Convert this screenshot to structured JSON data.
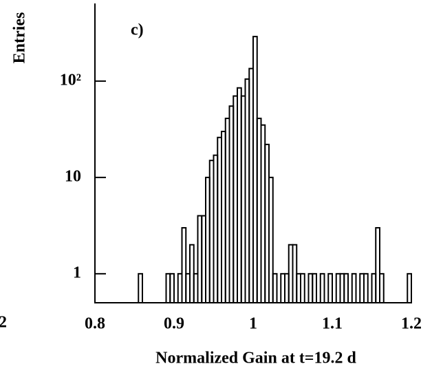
{
  "chart_data": {
    "type": "histogram",
    "annotation": "c)",
    "clipped_label": "2",
    "xlabel": "Normalized Gain at t=19.2 d",
    "ylabel": "Entries",
    "log_y": true,
    "color": "#000000",
    "xlim": [
      0.8,
      1.2
    ],
    "xticks": [
      0.8,
      0.9,
      1,
      1.1,
      1.2
    ],
    "ylim": [
      0.5,
      640
    ],
    "yticks": [
      1,
      10,
      {
        "value": 100,
        "label": "10²"
      }
    ],
    "bins": [
      0.8,
      0.805,
      0.81,
      0.815,
      0.82,
      0.825,
      0.83,
      0.835,
      0.84,
      0.845,
      0.85,
      0.855,
      0.86,
      0.865,
      0.87,
      0.875,
      0.88,
      0.885,
      0.89,
      0.895,
      0.9,
      0.905,
      0.91,
      0.915,
      0.92,
      0.925,
      0.93,
      0.935,
      0.94,
      0.945,
      0.95,
      0.955,
      0.96,
      0.965,
      0.97,
      0.975,
      0.98,
      0.985,
      0.99,
      0.995,
      1,
      1.005,
      1.01,
      1.015,
      1.02,
      1.025,
      1.03,
      1.035,
      1.04,
      1.045,
      1.05,
      1.055,
      1.06,
      1.065,
      1.07,
      1.075,
      1.08,
      1.085,
      1.09,
      1.095,
      1.1,
      1.105,
      1.11,
      1.115,
      1.12,
      1.125,
      1.13,
      1.135,
      1.14,
      1.145,
      1.15,
      1.155,
      1.16,
      1.165,
      1.17,
      1.175,
      1.18,
      1.185,
      1.19,
      1.195,
      1.2
    ],
    "values": [
      0,
      0,
      0,
      0,
      0,
      0,
      0,
      0,
      0,
      0,
      0,
      1,
      0,
      0,
      0,
      0,
      0,
      0,
      1,
      1,
      0,
      1,
      3,
      1,
      2,
      1,
      4,
      4,
      10,
      15,
      17,
      26,
      30,
      41,
      55,
      70,
      85,
      70,
      105,
      135,
      290,
      41,
      35,
      22,
      10,
      1,
      0,
      1,
      1,
      2,
      2,
      1,
      1,
      0,
      1,
      1,
      0,
      1,
      0,
      1,
      0,
      1,
      1,
      1,
      0,
      1,
      0,
      1,
      1,
      0,
      1,
      3,
      1,
      0,
      0,
      0,
      0,
      0,
      0,
      1
    ]
  }
}
